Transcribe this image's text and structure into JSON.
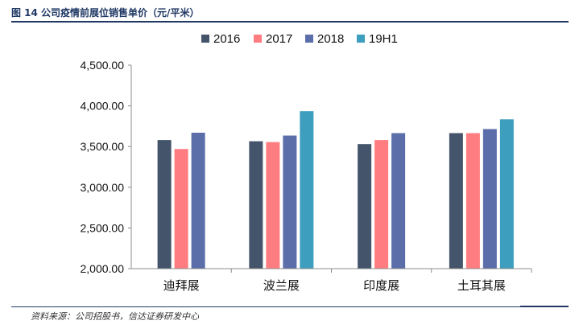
{
  "figure": {
    "caption": "图 14  公司疫情前展位销售单价（元/平米）",
    "source": "资料来源：公司招股书，信达证券研发中心"
  },
  "colors": {
    "title": "#1f3864",
    "series": [
      "#44546a",
      "#ff7c80",
      "#5b6eaa",
      "#3e9ebd"
    ]
  },
  "chart_data": {
    "type": "bar",
    "title": "",
    "xlabel": "",
    "ylabel": "",
    "categories": [
      "迪拜展",
      "波兰展",
      "印度展",
      "土耳其展"
    ],
    "series": [
      {
        "name": "2016",
        "values": [
          3580,
          3565,
          3530,
          3665
        ]
      },
      {
        "name": "2017",
        "values": [
          3470,
          3555,
          3580,
          3665
        ]
      },
      {
        "name": "2018",
        "values": [
          3670,
          3635,
          3665,
          3715
        ]
      },
      {
        "name": "19H1",
        "values": [
          null,
          3935,
          null,
          3835
        ]
      }
    ],
    "ylim": [
      2000,
      4500
    ],
    "yticks": [
      "2,000.00",
      "2,500.00",
      "3,000.00",
      "3,500.00",
      "4,000.00",
      "4,500.00"
    ],
    "ytick_values": [
      2000,
      2500,
      3000,
      3500,
      4000,
      4500
    ],
    "grid": false,
    "legend_position": "top"
  }
}
